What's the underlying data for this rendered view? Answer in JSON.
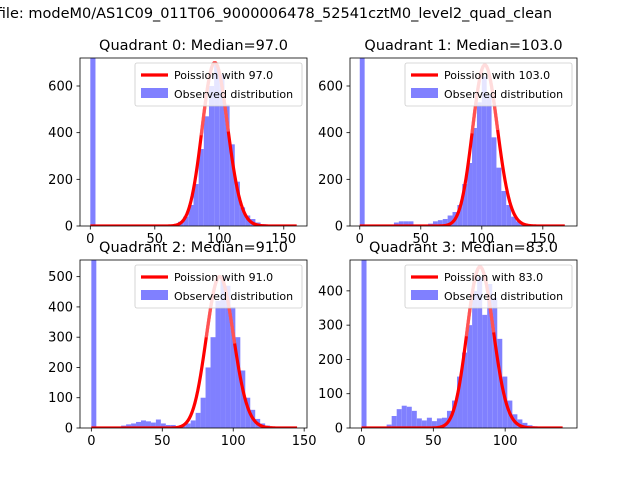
{
  "suptitle": "n file: modeM0/AS1C09_011T06_9000006478_52541cztM0_level2_quad_clean",
  "colors": {
    "hist": "#8080ff",
    "poisson": "#ff0000",
    "poisson_alpha_overlay": "#ff8080"
  },
  "chart_data": [
    {
      "type": "bar",
      "title": "Quadrant 0: Median=97.0",
      "median": 97.0,
      "legend": {
        "placement": "top-right",
        "line_label": "Poission with 97.0",
        "hist_label": "Observed distribution"
      },
      "xlim": [
        -8,
        168
      ],
      "ylim": [
        0,
        720
      ],
      "xticks": [
        0,
        50,
        100,
        150
      ],
      "yticks": [
        0,
        200,
        400,
        600
      ],
      "bin_width": 4,
      "bin_starts": [
        0,
        4,
        8,
        12,
        16,
        20,
        24,
        28,
        32,
        36,
        40,
        44,
        48,
        52,
        56,
        60,
        64,
        68,
        72,
        76,
        80,
        84,
        88,
        92,
        96,
        100,
        104,
        108,
        112,
        116,
        120,
        124,
        128,
        132,
        136,
        140,
        144,
        148,
        152,
        156
      ],
      "values": [
        720,
        0,
        0,
        0,
        0,
        0,
        0,
        0,
        0,
        0,
        0,
        0,
        0,
        0,
        2,
        4,
        8,
        18,
        40,
        90,
        180,
        330,
        470,
        600,
        690,
        650,
        520,
        350,
        190,
        80,
        45,
        30,
        15,
        8,
        4,
        2,
        1,
        0,
        0,
        0
      ],
      "poisson_lambda": 97,
      "poisson_scale": 700,
      "poisson_range": [
        0,
        160
      ]
    },
    {
      "type": "bar",
      "title": "Quadrant 1: Median=103.0",
      "median": 103.0,
      "legend": {
        "placement": "top-right",
        "line_label": "Poission with 103.0",
        "hist_label": "Observed distribution"
      },
      "xlim": [
        -8,
        178
      ],
      "ylim": [
        0,
        720
      ],
      "xticks": [
        0,
        50,
        100,
        150
      ],
      "yticks": [
        0,
        200,
        400,
        600
      ],
      "bin_width": 4,
      "bin_starts": [
        0,
        4,
        8,
        12,
        16,
        20,
        24,
        28,
        32,
        36,
        40,
        44,
        48,
        52,
        56,
        60,
        64,
        68,
        72,
        76,
        80,
        84,
        88,
        92,
        96,
        100,
        104,
        108,
        112,
        116,
        120,
        124,
        128,
        132,
        136,
        140,
        144,
        148,
        152,
        156,
        160,
        164
      ],
      "values": [
        720,
        0,
        0,
        0,
        0,
        0,
        0,
        15,
        20,
        20,
        20,
        5,
        3,
        3,
        10,
        20,
        25,
        30,
        45,
        60,
        90,
        180,
        270,
        420,
        530,
        640,
        560,
        380,
        250,
        150,
        90,
        40,
        20,
        12,
        8,
        4,
        2,
        1,
        0,
        0,
        0,
        0
      ],
      "poisson_lambda": 103,
      "poisson_scale": 690,
      "poisson_range": [
        0,
        168
      ]
    },
    {
      "type": "bar",
      "title": "Quadrant 2: Median=91.0",
      "median": 91.0,
      "legend": {
        "placement": "top-right",
        "line_label": "Poission with 91.0",
        "hist_label": "Observed distribution"
      },
      "xlim": [
        -8,
        152
      ],
      "ylim": [
        0,
        555
      ],
      "xticks": [
        0,
        50,
        100,
        150
      ],
      "yticks": [
        0,
        100,
        200,
        300,
        400,
        500
      ],
      "bin_width": 3.5,
      "bin_starts": [
        0,
        3.5,
        7,
        10.5,
        14,
        17.5,
        21,
        24.5,
        28,
        31.5,
        35,
        38.5,
        42,
        45.5,
        49,
        52.5,
        56,
        59.5,
        63,
        66.5,
        70,
        73.5,
        77,
        80.5,
        84,
        87.5,
        91,
        94.5,
        98,
        101.5,
        105,
        108.5,
        112,
        115.5,
        119,
        122.5,
        126,
        129.5,
        133,
        136.5,
        140
      ],
      "values": [
        555,
        0,
        0,
        0,
        0,
        0,
        8,
        12,
        15,
        20,
        25,
        22,
        18,
        28,
        15,
        10,
        10,
        5,
        8,
        15,
        25,
        50,
        100,
        200,
        300,
        420,
        500,
        470,
        400,
        300,
        190,
        100,
        60,
        30,
        15,
        8,
        4,
        2,
        1,
        0,
        0
      ],
      "poisson_lambda": 91,
      "poisson_scale": 500,
      "poisson_range": [
        0,
        145
      ]
    },
    {
      "type": "bar",
      "title": "Quadrant 3: Median=83.0",
      "median": 83.0,
      "legend": {
        "placement": "top-right",
        "line_label": "Poission with 83.0",
        "hist_label": "Observed distribution"
      },
      "xlim": [
        -8,
        150
      ],
      "ylim": [
        0,
        490
      ],
      "xticks": [
        0,
        50,
        100
      ],
      "yticks": [
        0,
        100,
        200,
        300,
        400
      ],
      "bin_width": 3.5,
      "bin_starts": [
        0,
        3.5,
        7,
        10.5,
        14,
        17.5,
        21,
        24.5,
        28,
        31.5,
        35,
        38.5,
        42,
        45.5,
        49,
        52.5,
        56,
        59.5,
        63,
        66.5,
        70,
        73.5,
        77,
        80.5,
        84,
        87.5,
        91,
        94.5,
        98,
        101.5,
        105,
        108.5,
        112,
        115.5,
        119,
        122.5,
        126,
        129.5,
        133,
        136.5
      ],
      "values": [
        490,
        0,
        0,
        0,
        0,
        10,
        35,
        55,
        65,
        62,
        50,
        28,
        22,
        30,
        20,
        28,
        30,
        50,
        80,
        150,
        220,
        300,
        400,
        440,
        330,
        420,
        380,
        260,
        150,
        80,
        40,
        25,
        15,
        8,
        5,
        3,
        2,
        1,
        0,
        0
      ],
      "poisson_lambda": 83,
      "poisson_scale": 470,
      "poisson_range": [
        0,
        140
      ]
    }
  ]
}
